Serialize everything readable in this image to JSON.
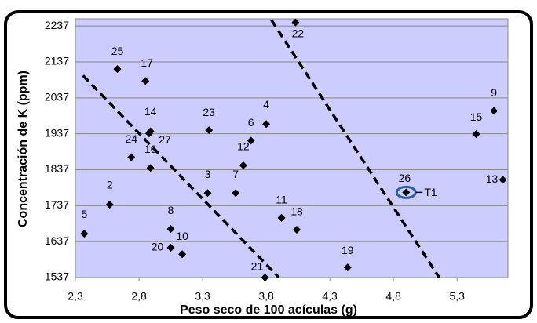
{
  "chart_data": {
    "type": "scatter",
    "x_label": "Peso seco de 100 acículas (g)",
    "y_label": "Concentración de K (ppm)",
    "xlim": [
      2.3,
      5.7
    ],
    "ylim": [
      1537,
      2257
    ],
    "xticks": [
      {
        "value": 2.3,
        "label": "2,3"
      },
      {
        "value": 2.8,
        "label": "2,8"
      },
      {
        "value": 3.3,
        "label": "3,3"
      },
      {
        "value": 3.8,
        "label": "3,8"
      },
      {
        "value": 4.3,
        "label": "4,3"
      },
      {
        "value": 4.8,
        "label": "4,8"
      },
      {
        "value": 5.3,
        "label": "5,3"
      }
    ],
    "yticks": [
      1537,
      1637,
      1737,
      1837,
      1937,
      2037,
      2137,
      2237
    ],
    "grid": true,
    "color": "#000000",
    "background": "#ccccff",
    "x": [
      2.37,
      2.57,
      2.63,
      2.85,
      2.89,
      2.88,
      2.74,
      2.89,
      3.05,
      3.05,
      3.14,
      3.35,
      3.34,
      3.56,
      3.62,
      3.68,
      3.8,
      3.79,
      3.92,
      4.04,
      4.03,
      4.44,
      4.9,
      5.45,
      5.59,
      5.66
    ],
    "values": [
      1659,
      1740,
      2117,
      2084,
      1944,
      1938,
      1872,
      1842,
      1672,
      1620,
      1602,
      1947,
      1772,
      1772,
      1849,
      1918,
      1964,
      1537,
      1703,
      1670,
      2247,
      1565,
      1774,
      1936,
      2001,
      1809
    ],
    "point_labels": [
      "5",
      "2",
      "25",
      "17",
      "14",
      "27",
      "24",
      "16",
      "8",
      "20",
      "10",
      "23",
      "3",
      "7",
      "12",
      "6",
      "4",
      "21",
      "11",
      "18",
      "22",
      "19",
      "26",
      "15",
      "9",
      "13"
    ],
    "trend_lines": [
      {
        "x": [
          2.36,
          3.9
        ],
        "values": [
          2099,
          1537
        ]
      },
      {
        "x": [
          3.84,
          5.16
        ],
        "values": [
          2254,
          1537
        ]
      }
    ],
    "annotation": "T1"
  }
}
